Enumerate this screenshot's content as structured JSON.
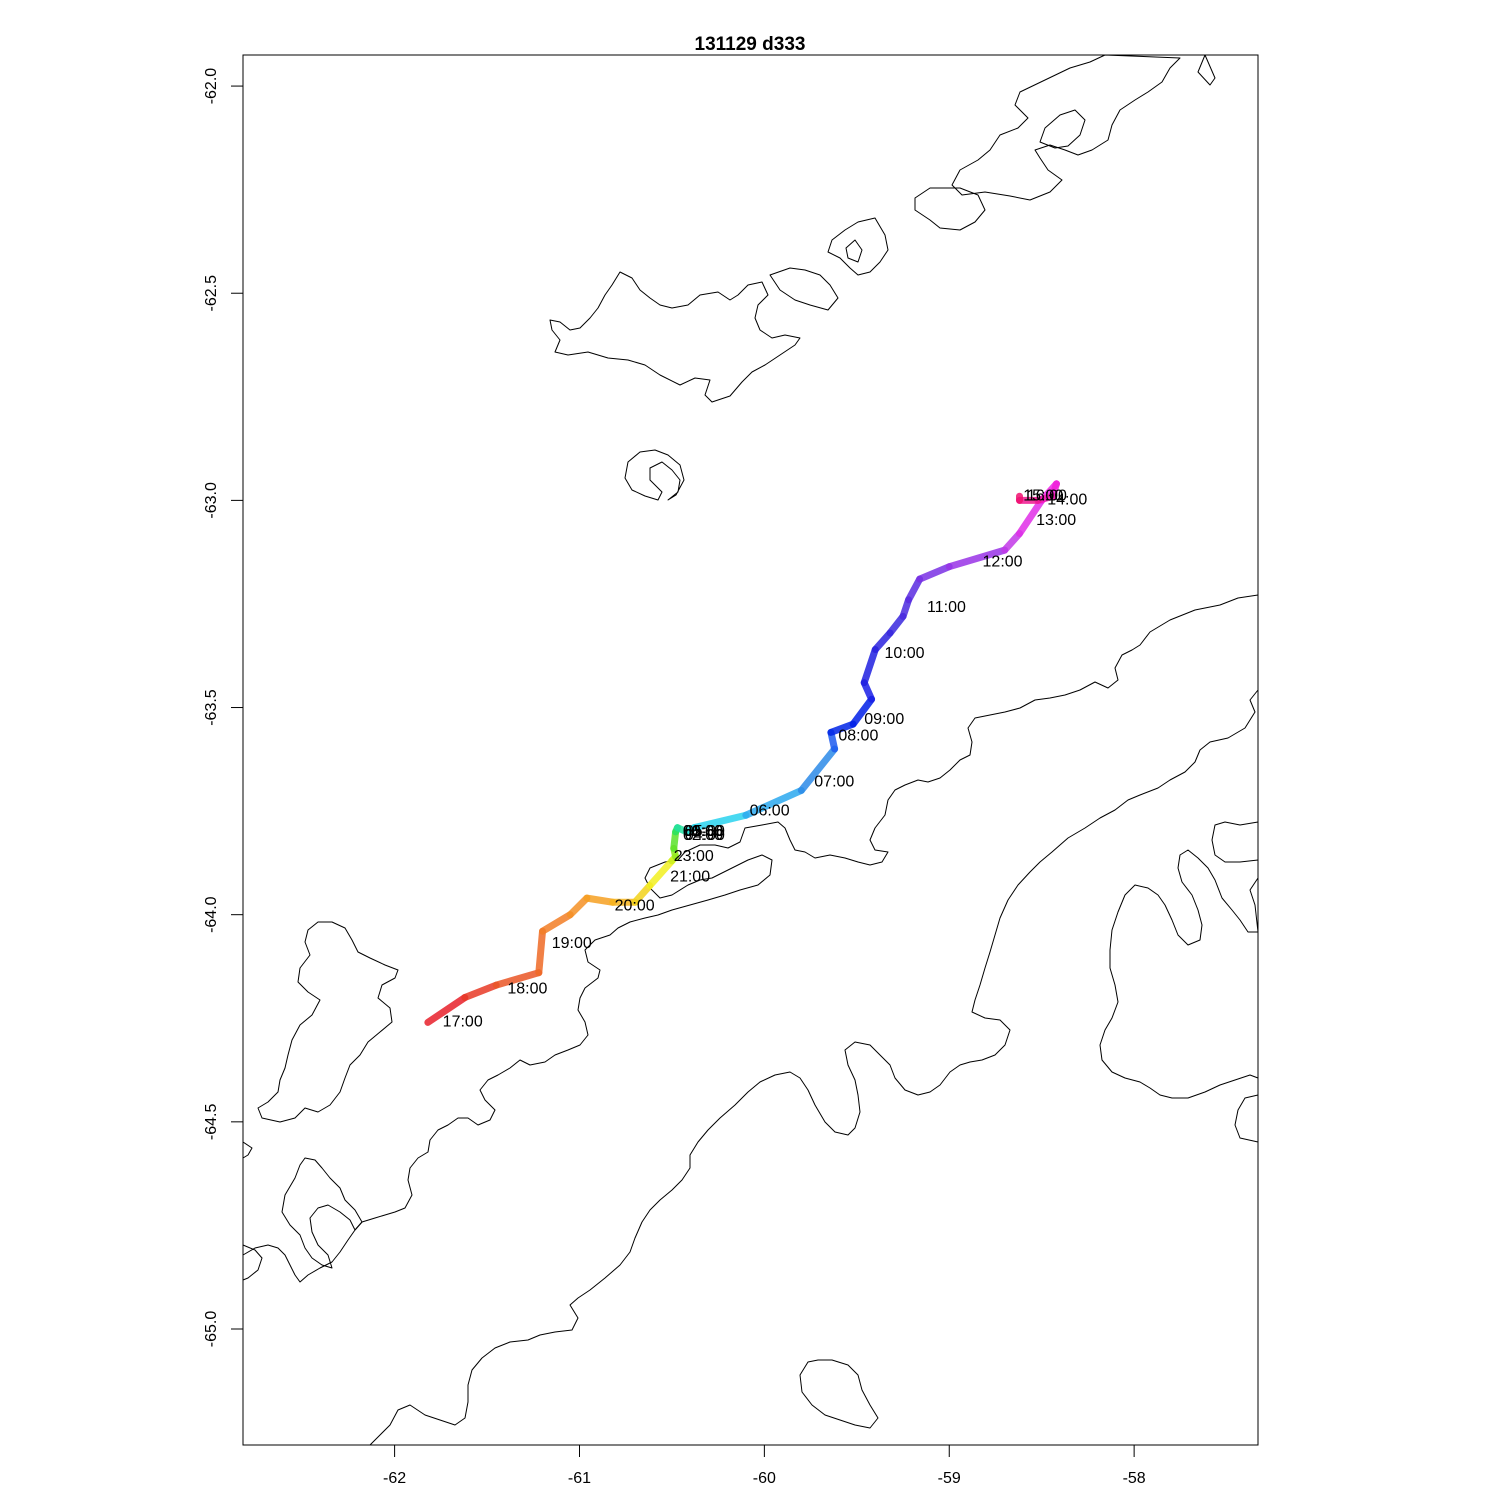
{
  "title": "131129   d333",
  "map": {
    "projection": "lon-lat",
    "xlim": [
      -62.82,
      -57.33
    ],
    "ylim": [
      -65.28,
      -61.925
    ],
    "background": "#ffffff",
    "coastline_color": "#000000"
  },
  "chart_data": {
    "type": "line",
    "title": "131129   d333",
    "x_ticks": [
      -62,
      -61,
      -60,
      -59,
      -58
    ],
    "x_tick_labels": [
      "-62",
      "-61",
      "-60",
      "-59",
      "-58"
    ],
    "y_ticks": [
      -62.0,
      -62.5,
      -63.0,
      -63.5,
      -64.0,
      -64.5,
      -65.0
    ],
    "y_tick_labels": [
      "-62.0",
      "-62.5",
      "-63.0",
      "-63.5",
      "-64.0",
      "-64.5",
      "-65.0"
    ],
    "color_scale": "rainbow by hour",
    "track": [
      {
        "lon": -60.42,
        "lat": -63.8,
        "color": "#2ae0e0"
      },
      {
        "lon": -60.38,
        "lat": -63.79,
        "color": "#29d2ef"
      },
      {
        "lon": -60.1,
        "lat": -63.76,
        "color": "#2aa8ee"
      },
      {
        "lon": -59.8,
        "lat": -63.7,
        "color": "#2b8ae8"
      },
      {
        "lon": -59.62,
        "lat": -63.6,
        "color": "#1c5bf0"
      },
      {
        "lon": -59.64,
        "lat": -63.56,
        "color": "#0025e6"
      },
      {
        "lon": -59.52,
        "lat": -63.54,
        "color": "#001ee8"
      },
      {
        "lon": -59.42,
        "lat": -63.48,
        "color": "#1a1fe6"
      },
      {
        "lon": -59.46,
        "lat": -63.44,
        "color": "#2020e0"
      },
      {
        "lon": -59.4,
        "lat": -63.36,
        "color": "#2c22de"
      },
      {
        "lon": -59.32,
        "lat": -63.32,
        "color": "#3a28de"
      },
      {
        "lon": -59.25,
        "lat": -63.28,
        "color": "#4a2ade"
      },
      {
        "lon": -59.22,
        "lat": -63.24,
        "color": "#5a2ce0"
      },
      {
        "lon": -59.16,
        "lat": -63.19,
        "color": "#7a30e4"
      },
      {
        "lon": -59.0,
        "lat": -63.16,
        "color": "#9933e6"
      },
      {
        "lon": -58.7,
        "lat": -63.12,
        "color": "#c238e8"
      },
      {
        "lon": -58.62,
        "lat": -63.08,
        "color": "#e02ee8"
      },
      {
        "lon": -58.5,
        "lat": -63.0,
        "color": "#f025e8"
      },
      {
        "lon": -58.42,
        "lat": -62.96,
        "color": "#f020d8"
      },
      {
        "lon": -58.44,
        "lat": -62.99,
        "color": "#f01ab0"
      },
      {
        "lon": -58.52,
        "lat": -63.0,
        "color": "#f01890"
      },
      {
        "lon": -58.62,
        "lat": -63.0,
        "color": "#f01070"
      },
      {
        "lon": -58.62,
        "lat": -62.99,
        "color": "#f00850"
      }
    ],
    "track2": [
      {
        "lon": -61.82,
        "lat": -64.26,
        "color": "#e8202a"
      },
      {
        "lon": -61.62,
        "lat": -64.2,
        "color": "#e83a26"
      },
      {
        "lon": -61.45,
        "lat": -64.17,
        "color": "#ea5626"
      },
      {
        "lon": -61.22,
        "lat": -64.14,
        "color": "#ee6a26"
      },
      {
        "lon": -61.2,
        "lat": -64.04,
        "color": "#f27e26"
      },
      {
        "lon": -61.05,
        "lat": -64.0,
        "color": "#f49026"
      },
      {
        "lon": -60.96,
        "lat": -63.96,
        "color": "#f6a022"
      },
      {
        "lon": -60.82,
        "lat": -63.97,
        "color": "#f6b41c"
      },
      {
        "lon": -60.7,
        "lat": -63.97,
        "color": "#f2d21a"
      },
      {
        "lon": -60.62,
        "lat": -63.93,
        "color": "#f2f020"
      },
      {
        "lon": -60.5,
        "lat": -63.87,
        "color": "#c8f020"
      },
      {
        "lon": -60.48,
        "lat": -63.86,
        "color": "#8ee81c"
      },
      {
        "lon": -60.49,
        "lat": -63.84,
        "color": "#5ae22a"
      },
      {
        "lon": -60.48,
        "lat": -63.8,
        "color": "#28e060"
      },
      {
        "lon": -60.47,
        "lat": -63.79,
        "color": "#22e0a0"
      },
      {
        "lon": -60.42,
        "lat": -63.8,
        "color": "#2ae0e0"
      }
    ],
    "time_labels": [
      {
        "text": "17:00",
        "lon": -61.74,
        "lat": -64.27
      },
      {
        "text": "18:00",
        "lon": -61.39,
        "lat": -64.19
      },
      {
        "text": "19:00",
        "lon": -61.15,
        "lat": -64.08
      },
      {
        "text": "20:00",
        "lon": -60.81,
        "lat": -63.99
      },
      {
        "text": "21:00",
        "lon": -60.51,
        "lat": -63.92
      },
      {
        "text": "23:00",
        "lon": -60.49,
        "lat": -63.87
      },
      {
        "text": "00:00",
        "lon": -60.44,
        "lat": -63.81
      },
      {
        "text": "01:00",
        "lon": -60.44,
        "lat": -63.81
      },
      {
        "text": "02:00",
        "lon": -60.44,
        "lat": -63.82
      },
      {
        "text": "03:00",
        "lon": -60.44,
        "lat": -63.81
      },
      {
        "text": "04:00",
        "lon": -60.43,
        "lat": -63.82
      },
      {
        "text": "05:00",
        "lon": -60.43,
        "lat": -63.81
      },
      {
        "text": "06:00",
        "lon": -60.08,
        "lat": -63.76
      },
      {
        "text": "07:00",
        "lon": -59.73,
        "lat": -63.69
      },
      {
        "text": "08:00",
        "lon": -59.6,
        "lat": -63.58
      },
      {
        "text": "09:00",
        "lon": -59.46,
        "lat": -63.54
      },
      {
        "text": "10:00",
        "lon": -59.35,
        "lat": -63.38
      },
      {
        "text": "11:00",
        "lon": -59.12,
        "lat": -63.27
      },
      {
        "text": "12:00",
        "lon": -58.82,
        "lat": -63.16
      },
      {
        "text": "13:00",
        "lon": -58.53,
        "lat": -63.06
      },
      {
        "text": "14:00",
        "lon": -58.47,
        "lat": -63.01
      },
      {
        "text": "15:00",
        "lon": -58.6,
        "lat": -63.0
      },
      {
        "text": "16:00",
        "lon": -58.58,
        "lat": -63.0
      }
    ]
  }
}
